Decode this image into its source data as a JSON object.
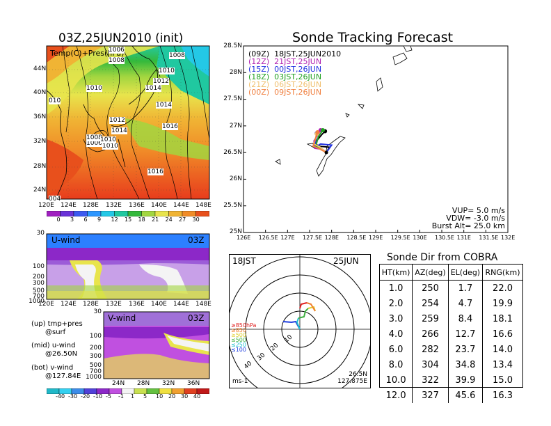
{
  "map": {
    "title": "03Z,25JUN2010 (init)",
    "overlay_label": "Temp(C)+Pres(hPa)",
    "lon_ticks": [
      "120E",
      "124E",
      "128E",
      "132E",
      "136E",
      "140E",
      "144E",
      "148E"
    ],
    "lat_ticks": [
      "44N",
      "40N",
      "36N",
      "32N",
      "28N",
      "24N"
    ],
    "isobar_labels": [
      "1006",
      "1008",
      "1008",
      "1010",
      "1010",
      "1012",
      "1014",
      "1014",
      "1012",
      "1016",
      "1016",
      "1014",
      "1010",
      "1006",
      "1008",
      "1010",
      "004",
      "010"
    ],
    "colorbar_labels": [
      "0",
      "3",
      "6",
      "9",
      "12",
      "15",
      "18",
      "21",
      "24",
      "27",
      "30"
    ],
    "colorbar_colors": [
      "#a020c0",
      "#6a32d8",
      "#3c5af0",
      "#2c96ff",
      "#24c8e6",
      "#20c8a0",
      "#34b93c",
      "#a2d640",
      "#e8e44c",
      "#f0b434",
      "#f08c28",
      "#e8501c"
    ]
  },
  "uwind": {
    "label": "U-wind",
    "time": "03Z",
    "y_ticks": [
      "30",
      "100",
      "200",
      "300",
      "500",
      "700",
      "1000"
    ],
    "x_ticks": [
      "120E",
      "124E",
      "128E",
      "132E",
      "136E",
      "140E",
      "144E",
      "148E"
    ]
  },
  "vwind": {
    "label": "V-wind",
    "time": "03Z",
    "y_ticks": [
      "30",
      "100",
      "200",
      "300",
      "500",
      "700",
      "1000"
    ],
    "x_ticks": [
      "24N",
      "28N",
      "32N",
      "36N"
    ],
    "colorbar_labels": [
      "-40",
      "-30",
      "-20",
      "-10",
      "-5",
      "-1",
      "1",
      "5",
      "10",
      "20",
      "30",
      "40"
    ],
    "colorbar_colors": [
      "#20b8c8",
      "#34d0f0",
      "#3c8ce8",
      "#5040d8",
      "#8c28c8",
      "#c050e0",
      "#f4f4f4",
      "#c8e050",
      "#64c040",
      "#f0e040",
      "#f0a030",
      "#e04020",
      "#c01818"
    ]
  },
  "legend_notes": [
    {
      "key": "(up) tmp+pres",
      "sub": "@surf"
    },
    {
      "key": "(mid) u-wind",
      "sub": "@26.50N"
    },
    {
      "key": "(bot) v-wind",
      "sub": "@127.84E"
    }
  ],
  "track": {
    "title": "Sonde Tracking Forecast",
    "lat_ticks": [
      "28.5N",
      "28N",
      "27.5N",
      "27N",
      "26.5N",
      "26N",
      "25.5N",
      "25N"
    ],
    "lon_ticks": [
      "126E",
      "126.5E",
      "127E",
      "127.5E",
      "128E",
      "128.5E",
      "129E",
      "129.5E",
      "130E",
      "130.5E",
      "131E",
      "131.5E",
      "132E"
    ],
    "launches": [
      {
        "label": "(09Z)  18JST,25JUN2010",
        "color": "#000000"
      },
      {
        "label": "(12Z)  21JST,25JUN",
        "color": "#b020b0"
      },
      {
        "label": "(15Z)  00JST,26JUN",
        "color": "#2030e0"
      },
      {
        "label": "(18Z)  03JST,26JUN",
        "color": "#20a020"
      },
      {
        "label": "(21Z)  06JST,26JUN",
        "color": "#f0c070"
      },
      {
        "label": "(00Z)  09JST,26JUN",
        "color": "#f08040"
      }
    ],
    "params": [
      "VUP= 5.0 m/s",
      "VDW= -3.0 m/s",
      "Burst Alt= 25.0 km"
    ]
  },
  "hodograph": {
    "time_label": "18JST",
    "date_label": "25JUN",
    "ring_labels": [
      "10",
      "20",
      "30",
      "40"
    ],
    "levels": [
      {
        "label": "≥850hPa",
        "color": "#e02020"
      },
      {
        "label": "≥850",
        "color": "#f08030"
      },
      {
        "label": "≥500",
        "color": "#e0d030"
      },
      {
        "label": "≤500",
        "color": "#40b040"
      },
      {
        "label": "≤250",
        "color": "#20c0d0"
      },
      {
        "label": "≤100",
        "color": "#2040e0"
      }
    ],
    "unit": "ms-1",
    "position": [
      "26.5N",
      "127.875E"
    ]
  },
  "sonde_table": {
    "title": "Sonde Dir from COBRA",
    "headers": [
      "HT(km)",
      "AZ(deg)",
      "EL(deg)",
      "RNG(km)"
    ],
    "rows": [
      [
        "1.0",
        "250",
        "1.7",
        "22.0"
      ],
      [
        "2.0",
        "254",
        "4.7",
        "19.9"
      ],
      [
        "3.0",
        "259",
        "8.4",
        "18.1"
      ],
      [
        "4.0",
        "266",
        "12.7",
        "16.6"
      ],
      [
        "6.0",
        "282",
        "23.7",
        "14.0"
      ],
      [
        "8.0",
        "304",
        "34.8",
        "13.4"
      ],
      [
        "10.0",
        "322",
        "39.9",
        "15.0"
      ],
      [
        "12.0",
        "327",
        "45.6",
        "16.3"
      ]
    ]
  },
  "chart_data": [
    {
      "type": "heatmap",
      "title": "03Z,25JUN2010 (init)",
      "xlabel": "",
      "ylabel": "",
      "x_range": [
        "120E",
        "150E"
      ],
      "y_range": [
        "22N",
        "48N"
      ],
      "colorbar": [
        0,
        3,
        6,
        9,
        12,
        15,
        18,
        21,
        24,
        27,
        30
      ]
    },
    {
      "type": "line",
      "title": "Sonde Tracking Forecast",
      "xlim": [
        126,
        132
      ],
      "ylim": [
        25,
        28.5
      ],
      "series": [
        {
          "name": "(09Z) 18JST,25JUN2010",
          "x": [
            127.88,
            127.95,
            127.7,
            127.62,
            127.78,
            127.85
          ],
          "y": [
            26.5,
            26.6,
            26.62,
            26.68,
            26.84,
            26.9
          ]
        },
        {
          "name": "(12Z) 21JST,25JUN",
          "x": [
            127.88,
            127.8,
            127.62,
            127.6,
            127.75
          ],
          "y": [
            26.5,
            26.56,
            26.58,
            26.72,
            26.92
          ]
        },
        {
          "name": "(15Z) 00JST,26JUN",
          "x": [
            127.88,
            128.0,
            127.75,
            127.62,
            127.66
          ],
          "y": [
            26.5,
            26.64,
            26.66,
            26.6,
            26.86
          ]
        },
        {
          "name": "(18Z) 03JST,26JUN",
          "x": [
            127.88,
            127.78,
            127.64,
            127.7,
            127.8
          ],
          "y": [
            26.5,
            26.55,
            26.62,
            26.8,
            26.92
          ]
        },
        {
          "name": "(21Z) 06JST,26JUN",
          "x": [
            127.88,
            127.74,
            127.6,
            127.66
          ],
          "y": [
            26.5,
            26.6,
            26.66,
            26.85
          ]
        },
        {
          "name": "(00Z) 09JST,26JUN",
          "x": [
            127.88,
            127.7,
            127.58,
            127.68
          ],
          "y": [
            26.5,
            26.58,
            26.62,
            26.88
          ]
        }
      ]
    },
    {
      "type": "table",
      "title": "Sonde Dir from COBRA",
      "columns": [
        "HT(km)",
        "AZ(deg)",
        "EL(deg)",
        "RNG(km)"
      ],
      "rows": [
        [
          1.0,
          250,
          1.7,
          22.0
        ],
        [
          2.0,
          254,
          4.7,
          19.9
        ],
        [
          3.0,
          259,
          8.4,
          18.1
        ],
        [
          4.0,
          266,
          12.7,
          16.6
        ],
        [
          6.0,
          282,
          23.7,
          14.0
        ],
        [
          8.0,
          304,
          34.8,
          13.4
        ],
        [
          10.0,
          322,
          39.9,
          15.0
        ],
        [
          12.0,
          327,
          45.6,
          16.3
        ]
      ]
    }
  ]
}
